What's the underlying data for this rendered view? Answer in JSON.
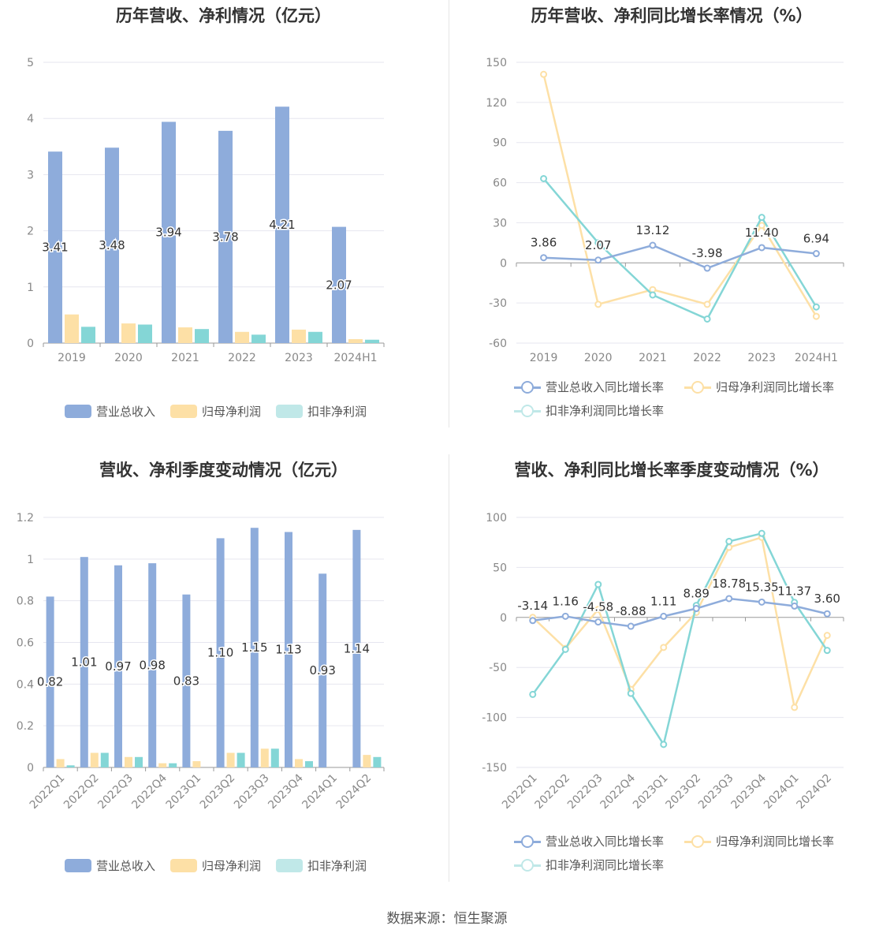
{
  "colors": {
    "revenue": "#8eacdb",
    "net_profit": "#fde0a6",
    "deducted_profit": "#84d6d6",
    "grid": "#e6e6ef",
    "axis_text": "#888888",
    "label_text": "#333333"
  },
  "legend_bar": [
    "营业总收入",
    "归母净利润",
    "扣非净利润"
  ],
  "legend_line": [
    "营业总收入同比增长率",
    "归母净利润同比增长率",
    "扣非净利润同比增长率"
  ],
  "source": "数据来源：恒生聚源",
  "chart_data": [
    {
      "type": "bar",
      "title": "历年营收、净利情况（亿元）",
      "categories": [
        "2019",
        "2020",
        "2021",
        "2022",
        "2023",
        "2024H1"
      ],
      "ylim": [
        0,
        5
      ],
      "yticks": [
        "0",
        "1",
        "2",
        "3",
        "4",
        "5"
      ],
      "series": [
        {
          "name": "营业总收入",
          "values": [
            3.41,
            3.48,
            3.94,
            3.78,
            4.21,
            2.07
          ],
          "labels": [
            "3.41",
            "3.48",
            "3.94",
            "3.78",
            "4.21",
            "2.07"
          ]
        },
        {
          "name": "归母净利润",
          "values": [
            0.51,
            0.35,
            0.28,
            0.2,
            0.24,
            0.07
          ]
        },
        {
          "name": "扣非净利润",
          "values": [
            0.29,
            0.33,
            0.25,
            0.15,
            0.2,
            0.06
          ]
        }
      ],
      "grid": true,
      "legend_position": "bottom"
    },
    {
      "type": "line",
      "title": "历年营收、净利同比增长率情况（%）",
      "categories": [
        "2019",
        "2020",
        "2021",
        "2022",
        "2023",
        "2024H1"
      ],
      "ylim": [
        -60,
        150
      ],
      "yticks": [
        "150",
        "120",
        "90",
        "60",
        "30",
        "0",
        "-30",
        "-60"
      ],
      "series": [
        {
          "name": "营业总收入同比增长率",
          "values": [
            3.86,
            2.07,
            13.12,
            -3.98,
            11.4,
            6.94
          ],
          "labels": [
            "3.86",
            "2.07",
            "13.12",
            "-3.98",
            "11.40",
            "6.94"
          ]
        },
        {
          "name": "归母净利润同比增长率",
          "values": [
            141,
            -31,
            -20,
            -31,
            28,
            -40
          ]
        },
        {
          "name": "扣非净利润同比增长率",
          "values": [
            63,
            15,
            -24,
            -42,
            34,
            -33
          ]
        }
      ],
      "grid": true,
      "legend_position": "bottom"
    },
    {
      "type": "bar",
      "title": "营收、净利季度变动情况（亿元）",
      "categories": [
        "2022Q1",
        "2022Q2",
        "2022Q3",
        "2022Q4",
        "2023Q1",
        "2023Q2",
        "2023Q3",
        "2023Q4",
        "2024Q1",
        "2024Q2"
      ],
      "ylim": [
        0,
        1.2
      ],
      "yticks": [
        "0",
        "0.2",
        "0.4",
        "0.6",
        "0.8",
        "1",
        "1.2"
      ],
      "series": [
        {
          "name": "营业总收入",
          "values": [
            0.82,
            1.01,
            0.97,
            0.98,
            0.83,
            1.1,
            1.15,
            1.13,
            0.93,
            1.14
          ],
          "labels": [
            "0.82",
            "1.01",
            "0.97",
            "0.98",
            "0.83",
            "1.10",
            "1.15",
            "1.13",
            "0.93",
            "1.14"
          ]
        },
        {
          "name": "归母净利润",
          "values": [
            0.04,
            0.07,
            0.05,
            0.02,
            0.03,
            0.07,
            0.09,
            0.04,
            0.0,
            0.06
          ]
        },
        {
          "name": "扣非净利润",
          "values": [
            0.01,
            0.07,
            0.05,
            0.02,
            0.0,
            0.07,
            0.09,
            0.03,
            0.0,
            0.05
          ]
        }
      ],
      "grid": true,
      "legend_position": "bottom"
    },
    {
      "type": "line",
      "title": "营收、净利同比增长率季度变动情况（%）",
      "categories": [
        "2022Q1",
        "2022Q2",
        "2022Q3",
        "2022Q4",
        "2023Q1",
        "2023Q2",
        "2023Q3",
        "2023Q4",
        "2024Q1",
        "2024Q2"
      ],
      "ylim": [
        -150,
        100
      ],
      "yticks": [
        "100",
        "50",
        "0",
        "-50",
        "-100",
        "-150"
      ],
      "series": [
        {
          "name": "营业总收入同比增长率",
          "values": [
            -3.14,
            1.16,
            -4.58,
            -8.88,
            1.11,
            8.89,
            18.78,
            15.35,
            11.37,
            3.6
          ],
          "labels": [
            "-3.14",
            "1.16",
            "-4.58",
            "-8.88",
            "1.11",
            "8.89",
            "18.78",
            "15.35",
            "11.37",
            "3.60"
          ]
        },
        {
          "name": "归母净利润同比增长率",
          "values": [
            0,
            -31,
            8,
            -72,
            -30,
            5,
            70,
            80,
            -90,
            -18
          ]
        },
        {
          "name": "扣非净利润同比增长率",
          "values": [
            -77,
            -32,
            33,
            -76,
            -127,
            12,
            76,
            84,
            15,
            -33
          ]
        }
      ],
      "grid": true,
      "legend_position": "bottom"
    }
  ]
}
